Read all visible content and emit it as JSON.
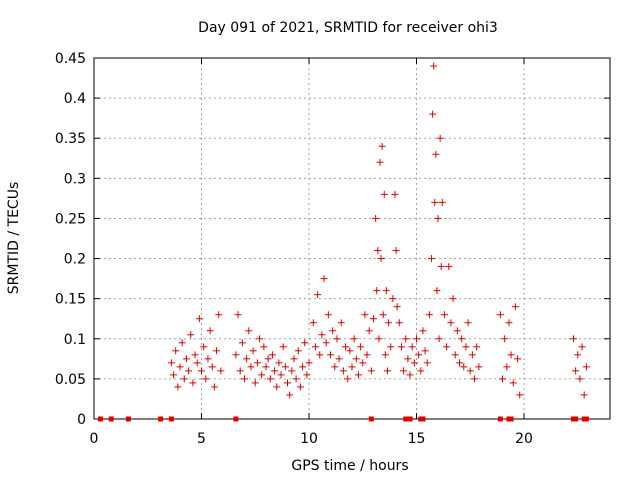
{
  "chart_data": {
    "type": "scatter",
    "title": "Day 091 of 2021, SRMTID for receiver ohi3",
    "xlabel": "GPS time / hours",
    "ylabel": "SRMTID / TECUs",
    "xlim": [
      0,
      24
    ],
    "ylim": [
      0,
      0.45
    ],
    "xticks": [
      0,
      5,
      10,
      15,
      20
    ],
    "xtick_labels": [
      "0",
      "5",
      "10",
      "15",
      "20"
    ],
    "yticks": [
      0,
      0.05,
      0.1,
      0.15,
      0.2,
      0.25,
      0.3,
      0.35,
      0.4,
      0.45
    ],
    "ytick_labels": [
      "0",
      "0.05",
      "0.1",
      "0.15",
      "0.2",
      "0.25",
      "0.3",
      "0.35",
      "0.4",
      "0.45"
    ],
    "grid": true,
    "marker": "plus",
    "color": "#e00000",
    "series": [
      {
        "name": "SRMTID",
        "points": [
          [
            3.6,
            0.07
          ],
          [
            3.7,
            0.055
          ],
          [
            3.8,
            0.085
          ],
          [
            3.9,
            0.04
          ],
          [
            4.0,
            0.065
          ],
          [
            4.1,
            0.095
          ],
          [
            4.2,
            0.05
          ],
          [
            4.3,
            0.075
          ],
          [
            4.4,
            0.06
          ],
          [
            4.5,
            0.105
          ],
          [
            4.6,
            0.045
          ],
          [
            4.7,
            0.08
          ],
          [
            4.8,
            0.07
          ],
          [
            4.9,
            0.125
          ],
          [
            5.0,
            0.06
          ],
          [
            5.1,
            0.09
          ],
          [
            5.2,
            0.05
          ],
          [
            5.3,
            0.075
          ],
          [
            5.4,
            0.11
          ],
          [
            5.5,
            0.065
          ],
          [
            5.6,
            0.04
          ],
          [
            5.7,
            0.085
          ],
          [
            5.8,
            0.13
          ],
          [
            5.9,
            0.06
          ],
          [
            6.6,
            0.08
          ],
          [
            6.7,
            0.13
          ],
          [
            6.8,
            0.06
          ],
          [
            6.9,
            0.095
          ],
          [
            7.0,
            0.05
          ],
          [
            7.1,
            0.075
          ],
          [
            7.2,
            0.11
          ],
          [
            7.3,
            0.065
          ],
          [
            7.4,
            0.085
          ],
          [
            7.5,
            0.045
          ],
          [
            7.6,
            0.07
          ],
          [
            7.7,
            0.1
          ],
          [
            7.8,
            0.055
          ],
          [
            7.9,
            0.09
          ],
          [
            8.0,
            0.065
          ],
          [
            8.1,
            0.075
          ],
          [
            8.2,
            0.05
          ],
          [
            8.3,
            0.08
          ],
          [
            8.4,
            0.06
          ],
          [
            8.5,
            0.04
          ],
          [
            8.6,
            0.07
          ],
          [
            8.7,
            0.055
          ],
          [
            8.8,
            0.09
          ],
          [
            8.9,
            0.065
          ],
          [
            9.0,
            0.045
          ],
          [
            9.1,
            0.03
          ],
          [
            9.2,
            0.06
          ],
          [
            9.3,
            0.075
          ],
          [
            9.4,
            0.05
          ],
          [
            9.5,
            0.085
          ],
          [
            9.6,
            0.04
          ],
          [
            9.7,
            0.065
          ],
          [
            9.8,
            0.095
          ],
          [
            9.9,
            0.055
          ],
          [
            10.0,
            0.07
          ],
          [
            10.2,
            0.12
          ],
          [
            10.3,
            0.09
          ],
          [
            10.4,
            0.155
          ],
          [
            10.5,
            0.08
          ],
          [
            10.6,
            0.105
          ],
          [
            10.7,
            0.175
          ],
          [
            10.8,
            0.095
          ],
          [
            10.9,
            0.13
          ],
          [
            11.0,
            0.08
          ],
          [
            11.1,
            0.11
          ],
          [
            11.2,
            0.065
          ],
          [
            11.3,
            0.1
          ],
          [
            11.4,
            0.075
          ],
          [
            11.5,
            0.12
          ],
          [
            11.6,
            0.06
          ],
          [
            11.7,
            0.09
          ],
          [
            11.8,
            0.05
          ],
          [
            11.9,
            0.085
          ],
          [
            12.0,
            0.065
          ],
          [
            12.1,
            0.1
          ],
          [
            12.2,
            0.075
          ],
          [
            12.3,
            0.055
          ],
          [
            12.4,
            0.09
          ],
          [
            12.5,
            0.07
          ],
          [
            12.6,
            0.13
          ],
          [
            12.7,
            0.08
          ],
          [
            12.8,
            0.11
          ],
          [
            12.9,
            0.06
          ],
          [
            13.0,
            0.125
          ],
          [
            13.1,
            0.25
          ],
          [
            13.15,
            0.16
          ],
          [
            13.2,
            0.21
          ],
          [
            13.25,
            0.1
          ],
          [
            13.3,
            0.32
          ],
          [
            13.35,
            0.2
          ],
          [
            13.4,
            0.34
          ],
          [
            13.45,
            0.13
          ],
          [
            13.5,
            0.28
          ],
          [
            13.55,
            0.08
          ],
          [
            13.6,
            0.16
          ],
          [
            13.65,
            0.06
          ],
          [
            13.7,
            0.12
          ],
          [
            13.8,
            0.09
          ],
          [
            13.9,
            0.15
          ],
          [
            14.0,
            0.28
          ],
          [
            14.05,
            0.21
          ],
          [
            14.1,
            0.14
          ],
          [
            14.2,
            0.12
          ],
          [
            14.3,
            0.09
          ],
          [
            14.4,
            0.06
          ],
          [
            14.5,
            0.1
          ],
          [
            14.6,
            0.075
          ],
          [
            14.7,
            0.055
          ],
          [
            14.8,
            0.09
          ],
          [
            14.9,
            0.07
          ],
          [
            15.0,
            0.1
          ],
          [
            15.1,
            0.08
          ],
          [
            15.2,
            0.06
          ],
          [
            15.3,
            0.11
          ],
          [
            15.4,
            0.085
          ],
          [
            15.5,
            0.07
          ],
          [
            15.6,
            0.13
          ],
          [
            15.7,
            0.2
          ],
          [
            15.75,
            0.38
          ],
          [
            15.8,
            0.44
          ],
          [
            15.85,
            0.27
          ],
          [
            15.9,
            0.33
          ],
          [
            15.95,
            0.16
          ],
          [
            16.0,
            0.25
          ],
          [
            16.05,
            0.1
          ],
          [
            16.1,
            0.35
          ],
          [
            16.15,
            0.19
          ],
          [
            16.2,
            0.27
          ],
          [
            16.3,
            0.13
          ],
          [
            16.4,
            0.09
          ],
          [
            16.5,
            0.19
          ],
          [
            16.6,
            0.12
          ],
          [
            16.7,
            0.15
          ],
          [
            16.8,
            0.08
          ],
          [
            16.9,
            0.11
          ],
          [
            17.0,
            0.07
          ],
          [
            17.1,
            0.1
          ],
          [
            17.2,
            0.065
          ],
          [
            17.3,
            0.09
          ],
          [
            17.4,
            0.12
          ],
          [
            17.5,
            0.06
          ],
          [
            17.6,
            0.08
          ],
          [
            17.7,
            0.05
          ],
          [
            17.8,
            0.09
          ],
          [
            17.9,
            0.065
          ],
          [
            18.9,
            0.13
          ],
          [
            19.0,
            0.05
          ],
          [
            19.1,
            0.1
          ],
          [
            19.2,
            0.065
          ],
          [
            19.3,
            0.12
          ],
          [
            19.4,
            0.08
          ],
          [
            19.5,
            0.045
          ],
          [
            19.6,
            0.14
          ],
          [
            19.7,
            0.075
          ],
          [
            19.8,
            0.03
          ],
          [
            22.3,
            0.1
          ],
          [
            22.4,
            0.06
          ],
          [
            22.5,
            0.08
          ],
          [
            22.6,
            0.05
          ],
          [
            22.7,
            0.09
          ],
          [
            22.8,
            0.03
          ],
          [
            22.9,
            0.065
          ]
        ],
        "zero_points": [
          0.3,
          0.8,
          1.6,
          3.1,
          3.6,
          6.6,
          12.9,
          14.5,
          14.6,
          14.7,
          15.2,
          15.3,
          18.9,
          19.3,
          19.4,
          22.3,
          22.4,
          22.8,
          22.9
        ]
      }
    ]
  }
}
